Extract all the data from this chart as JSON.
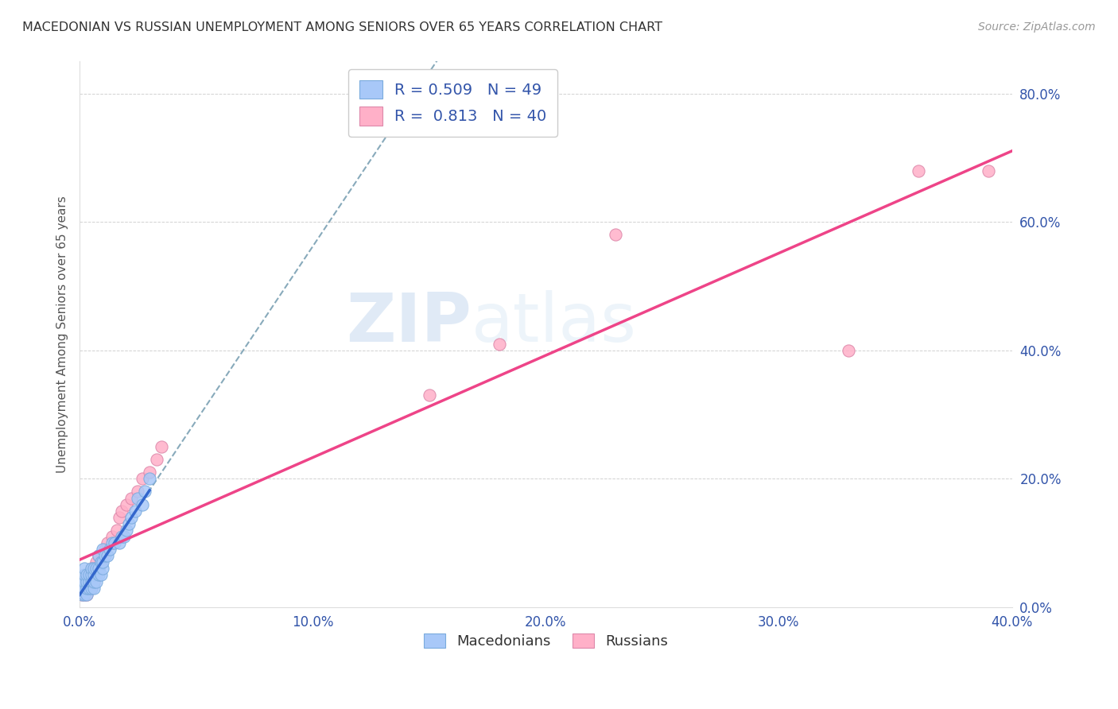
{
  "title": "MACEDONIAN VS RUSSIAN UNEMPLOYMENT AMONG SENIORS OVER 65 YEARS CORRELATION CHART",
  "source": "Source: ZipAtlas.com",
  "ylabel": "Unemployment Among Seniors over 65 years",
  "xlim": [
    0,
    0.4
  ],
  "ylim": [
    0,
    0.85
  ],
  "yticks": [
    0.0,
    0.2,
    0.4,
    0.6,
    0.8
  ],
  "xticks": [
    0.0,
    0.1,
    0.2,
    0.3,
    0.4
  ],
  "watermark_zip": "ZIP",
  "watermark_atlas": "atlas",
  "mac_color": "#a8c8f8",
  "mac_edge": "#7aabdd",
  "mac_line_color": "#3366cc",
  "rus_color": "#ffb0c8",
  "rus_edge": "#dd88aa",
  "rus_line_color": "#ee4488",
  "dashed_color": "#88aabb",
  "background": "#ffffff",
  "mac_R": 0.509,
  "mac_N": 49,
  "rus_R": 0.813,
  "rus_N": 40,
  "marker_size": 120,
  "mac_x": [
    0.001,
    0.001,
    0.001,
    0.002,
    0.002,
    0.002,
    0.002,
    0.002,
    0.003,
    0.003,
    0.003,
    0.003,
    0.004,
    0.004,
    0.004,
    0.005,
    0.005,
    0.005,
    0.005,
    0.006,
    0.006,
    0.006,
    0.006,
    0.007,
    0.007,
    0.008,
    0.008,
    0.008,
    0.009,
    0.009,
    0.01,
    0.01,
    0.01,
    0.011,
    0.012,
    0.013,
    0.014,
    0.015,
    0.017,
    0.018,
    0.019,
    0.02,
    0.021,
    0.022,
    0.024,
    0.025,
    0.027,
    0.028,
    0.03
  ],
  "mac_y": [
    0.02,
    0.03,
    0.04,
    0.02,
    0.03,
    0.04,
    0.05,
    0.06,
    0.02,
    0.03,
    0.04,
    0.05,
    0.03,
    0.04,
    0.05,
    0.03,
    0.04,
    0.05,
    0.06,
    0.03,
    0.04,
    0.05,
    0.06,
    0.04,
    0.06,
    0.05,
    0.06,
    0.08,
    0.05,
    0.07,
    0.06,
    0.07,
    0.09,
    0.08,
    0.08,
    0.09,
    0.1,
    0.1,
    0.1,
    0.11,
    0.11,
    0.12,
    0.13,
    0.14,
    0.15,
    0.17,
    0.16,
    0.18,
    0.2
  ],
  "rus_x": [
    0.001,
    0.001,
    0.002,
    0.002,
    0.002,
    0.003,
    0.003,
    0.003,
    0.004,
    0.004,
    0.005,
    0.005,
    0.005,
    0.006,
    0.006,
    0.007,
    0.007,
    0.008,
    0.008,
    0.009,
    0.01,
    0.011,
    0.012,
    0.014,
    0.016,
    0.017,
    0.018,
    0.02,
    0.022,
    0.025,
    0.027,
    0.03,
    0.033,
    0.035,
    0.15,
    0.18,
    0.23,
    0.33,
    0.36,
    0.39
  ],
  "rus_y": [
    0.02,
    0.03,
    0.02,
    0.03,
    0.04,
    0.02,
    0.04,
    0.05,
    0.03,
    0.05,
    0.03,
    0.05,
    0.06,
    0.04,
    0.06,
    0.05,
    0.07,
    0.06,
    0.08,
    0.07,
    0.08,
    0.09,
    0.1,
    0.11,
    0.12,
    0.14,
    0.15,
    0.16,
    0.17,
    0.18,
    0.2,
    0.21,
    0.23,
    0.25,
    0.33,
    0.41,
    0.58,
    0.4,
    0.68,
    0.68
  ]
}
